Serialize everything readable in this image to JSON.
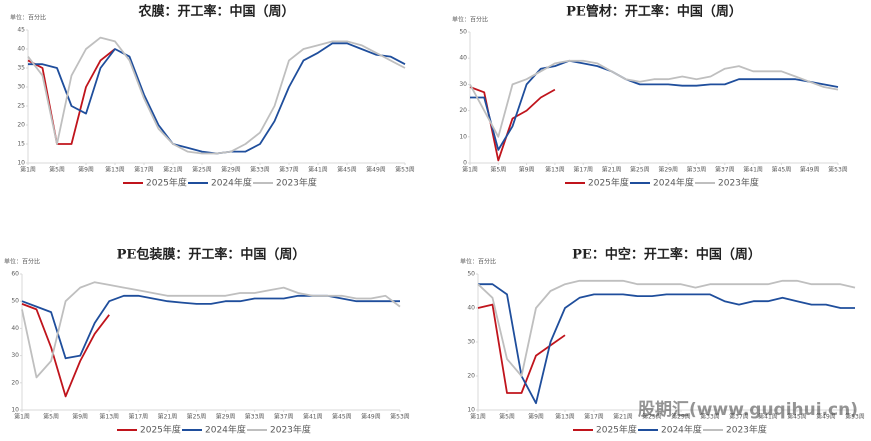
{
  "chart_data": [
    {
      "type": "line",
      "title": "农膜：开工率：中国（周）",
      "unit": "单位：百分比",
      "x": [
        1,
        3,
        5,
        7,
        9,
        11,
        13,
        15,
        17,
        19,
        21,
        23,
        25,
        27,
        29,
        31,
        33,
        35,
        37,
        39,
        41,
        43,
        45,
        47,
        49,
        51,
        53
      ],
      "xlim": [
        1,
        53
      ],
      "xticks": [
        {
          "value": 1,
          "label": "第1周"
        },
        {
          "value": 5,
          "label": "第5周"
        },
        {
          "value": 9,
          "label": "第9周"
        },
        {
          "value": 13,
          "label": "第13周"
        },
        {
          "value": 17,
          "label": "第17周"
        },
        {
          "value": 21,
          "label": "第21周"
        },
        {
          "value": 25,
          "label": "第25周"
        },
        {
          "value": 29,
          "label": "第29周"
        },
        {
          "value": 33,
          "label": "第33周"
        },
        {
          "value": 37,
          "label": "第37周"
        },
        {
          "value": 41,
          "label": "第41周"
        },
        {
          "value": 45,
          "label": "第45周"
        },
        {
          "value": 49,
          "label": "第49周"
        },
        {
          "value": 53,
          "label": "第53周"
        }
      ],
      "ylim": [
        10,
        45
      ],
      "yticks": [
        10,
        15,
        20,
        25,
        30,
        35,
        40,
        45
      ],
      "series": [
        {
          "name": "2025年度",
          "color": "#c0141c",
          "values": [
            37,
            35,
            15,
            15,
            30,
            37,
            40,
            null,
            null,
            null,
            null,
            null,
            null,
            null,
            null,
            null,
            null,
            null,
            null,
            null,
            null,
            null,
            null,
            null,
            null,
            null,
            null
          ]
        },
        {
          "name": "2024年度",
          "color": "#1f4e9c",
          "values": [
            36,
            36,
            35,
            25,
            23,
            35,
            40,
            38,
            28,
            20,
            15,
            14,
            13,
            12.5,
            13,
            13,
            15,
            21,
            30,
            37,
            39,
            41.5,
            41.5,
            40,
            38.5,
            38,
            36
          ]
        },
        {
          "name": "2023年度",
          "color": "#bfbfbf",
          "values": [
            38,
            33,
            15,
            33,
            40,
            43,
            42,
            37,
            27,
            19,
            15,
            13,
            12.5,
            12.5,
            13,
            15,
            18,
            25,
            37,
            40,
            41,
            42,
            42,
            41,
            39,
            37,
            35
          ]
        }
      ]
    },
    {
      "type": "line",
      "title": "PE管材：开工率：中国（周）",
      "unit": "单位：百分比",
      "x": [
        1,
        3,
        5,
        7,
        9,
        11,
        13,
        15,
        17,
        19,
        21,
        23,
        25,
        27,
        29,
        31,
        33,
        35,
        37,
        39,
        41,
        43,
        45,
        47,
        49,
        51,
        53
      ],
      "xlim": [
        1,
        53
      ],
      "xticks": [
        {
          "value": 1,
          "label": "第1周"
        },
        {
          "value": 5,
          "label": "第5周"
        },
        {
          "value": 9,
          "label": "第9周"
        },
        {
          "value": 13,
          "label": "第13周"
        },
        {
          "value": 17,
          "label": "第17周"
        },
        {
          "value": 21,
          "label": "第21周"
        },
        {
          "value": 25,
          "label": "第25周"
        },
        {
          "value": 29,
          "label": "第29周"
        },
        {
          "value": 33,
          "label": "第33周"
        },
        {
          "value": 37,
          "label": "第37周"
        },
        {
          "value": 41,
          "label": "第41周"
        },
        {
          "value": 45,
          "label": "第45周"
        },
        {
          "value": 49,
          "label": "第49周"
        },
        {
          "value": 53,
          "label": "第53周"
        }
      ],
      "ylim": [
        0,
        50
      ],
      "yticks": [
        0,
        10,
        20,
        30,
        40,
        50
      ],
      "series": [
        {
          "name": "2025年度",
          "color": "#c0141c",
          "values": [
            29,
            27,
            1,
            17,
            20,
            25,
            28,
            null,
            null,
            null,
            null,
            null,
            null,
            null,
            null,
            null,
            null,
            null,
            null,
            null,
            null,
            null,
            null,
            null,
            null,
            null,
            null
          ]
        },
        {
          "name": "2024年度",
          "color": "#1f4e9c",
          "values": [
            25,
            25,
            5,
            14,
            30,
            36,
            37,
            39,
            38,
            37,
            35,
            32,
            30,
            30,
            30,
            29.5,
            29.5,
            30,
            30,
            32,
            32,
            32,
            32,
            32,
            31,
            30,
            29
          ]
        },
        {
          "name": "2023年度",
          "color": "#bfbfbf",
          "values": [
            30,
            20,
            10,
            30,
            32,
            35,
            38,
            39,
            39,
            38,
            35,
            32,
            31,
            32,
            32,
            33,
            32,
            33,
            36,
            37,
            35,
            35,
            35,
            33,
            31,
            29,
            28
          ]
        }
      ]
    },
    {
      "type": "line",
      "title": "PE包装膜：开工率：中国（周）",
      "unit": "单位：百分比",
      "x": [
        1,
        3,
        5,
        7,
        9,
        11,
        13,
        15,
        17,
        19,
        21,
        23,
        25,
        27,
        29,
        31,
        33,
        35,
        37,
        39,
        41,
        43,
        45,
        47,
        49,
        51,
        53
      ],
      "xlim": [
        1,
        53
      ],
      "xticks": [
        {
          "value": 1,
          "label": "第1周"
        },
        {
          "value": 5,
          "label": "第5周"
        },
        {
          "value": 9,
          "label": "第9周"
        },
        {
          "value": 13,
          "label": "第13周"
        },
        {
          "value": 17,
          "label": "第17周"
        },
        {
          "value": 21,
          "label": "第21周"
        },
        {
          "value": 25,
          "label": "第25周"
        },
        {
          "value": 29,
          "label": "第29周"
        },
        {
          "value": 33,
          "label": "第33周"
        },
        {
          "value": 37,
          "label": "第37周"
        },
        {
          "value": 41,
          "label": "第41周"
        },
        {
          "value": 45,
          "label": "第45周"
        },
        {
          "value": 49,
          "label": "第49周"
        },
        {
          "value": 53,
          "label": "第53周"
        }
      ],
      "ylim": [
        10,
        60
      ],
      "yticks": [
        10,
        20,
        30,
        40,
        50,
        60
      ],
      "series": [
        {
          "name": "2025年度",
          "color": "#c0141c",
          "values": [
            49,
            47,
            33,
            15,
            28,
            38,
            45,
            null,
            null,
            null,
            null,
            null,
            null,
            null,
            null,
            null,
            null,
            null,
            null,
            null,
            null,
            null,
            null,
            null,
            null,
            null,
            null
          ]
        },
        {
          "name": "2024年度",
          "color": "#1f4e9c",
          "values": [
            50,
            48,
            46,
            29,
            30,
            42,
            50,
            52,
            52,
            51,
            50,
            49.5,
            49,
            49,
            50,
            50,
            51,
            51,
            51,
            52,
            52,
            52,
            51,
            50,
            50,
            50,
            50
          ]
        },
        {
          "name": "2023年度",
          "color": "#bfbfbf",
          "values": [
            47,
            22,
            28,
            50,
            55,
            57,
            56,
            55,
            54,
            53,
            52,
            52,
            52,
            52,
            52,
            53,
            53,
            54,
            55,
            53,
            52,
            52,
            52,
            51,
            51,
            52,
            48
          ]
        }
      ]
    },
    {
      "type": "line",
      "title": "PE：中空：开工率：中国（周）",
      "unit": "单位：百分比",
      "x": [
        1,
        3,
        5,
        7,
        9,
        11,
        13,
        15,
        17,
        19,
        21,
        23,
        25,
        27,
        29,
        31,
        33,
        35,
        37,
        39,
        41,
        43,
        45,
        47,
        49,
        51,
        53
      ],
      "xlim": [
        1,
        53
      ],
      "xticks": [
        {
          "value": 1,
          "label": "第1周"
        },
        {
          "value": 5,
          "label": "第5周"
        },
        {
          "value": 9,
          "label": "第9周"
        },
        {
          "value": 13,
          "label": "第13周"
        },
        {
          "value": 17,
          "label": "第17周"
        },
        {
          "value": 21,
          "label": "第21周"
        },
        {
          "value": 25,
          "label": "第25周"
        },
        {
          "value": 29,
          "label": "第29周"
        },
        {
          "value": 33,
          "label": "第33周"
        },
        {
          "value": 37,
          "label": "第37周"
        },
        {
          "value": 41,
          "label": "第41周"
        },
        {
          "value": 45,
          "label": "第45周"
        },
        {
          "value": 49,
          "label": "第49周"
        },
        {
          "value": 53,
          "label": "第53周"
        }
      ],
      "ylim": [
        10,
        50
      ],
      "yticks": [
        10,
        20,
        30,
        40,
        50
      ],
      "series": [
        {
          "name": "2025年度",
          "color": "#c0141c",
          "values": [
            40,
            41,
            15,
            15,
            26,
            29,
            32,
            null,
            null,
            null,
            null,
            null,
            null,
            null,
            null,
            null,
            null,
            null,
            null,
            null,
            null,
            null,
            null,
            null,
            null,
            null,
            null
          ]
        },
        {
          "name": "2024年度",
          "color": "#1f4e9c",
          "values": [
            47,
            47,
            44,
            20,
            12,
            30,
            40,
            43,
            44,
            44,
            44,
            43.5,
            43.5,
            44,
            44,
            44,
            44,
            42,
            41,
            42,
            42,
            43,
            42,
            41,
            41,
            40,
            40
          ]
        },
        {
          "name": "2023年度",
          "color": "#bfbfbf",
          "values": [
            47,
            43,
            25,
            20,
            40,
            45,
            47,
            48,
            48,
            48,
            48,
            47,
            47,
            47,
            47,
            46,
            47,
            47,
            47,
            47,
            47,
            48,
            48,
            47,
            47,
            47,
            46
          ]
        }
      ]
    }
  ],
  "watermark": "股期汇(www.guqihui.cn)"
}
